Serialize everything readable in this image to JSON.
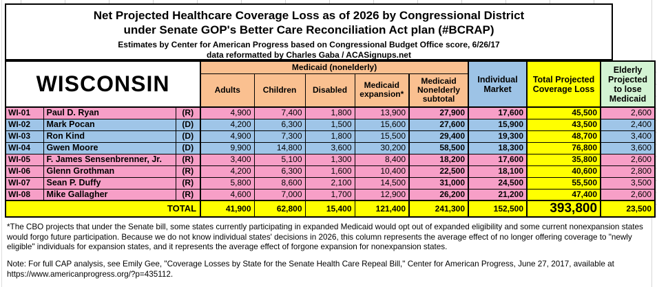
{
  "title": {
    "line1": "Net Projected Healthcare Coverage Loss as of 2026 by Congressional District",
    "line2": "under Senate GOP's Better Care Reconciliation Act plan (#BCRAP)",
    "line3": "Estimates by Center for American Progress based on Congressional Budget Office score, 6/26/17",
    "line4": "data reformatted by Charles Gaba / ACASignups.net"
  },
  "chart_data": {
    "type": "table",
    "state": "WISCONSIN",
    "headers": {
      "medicaid_group": "Medicaid (nonelderly)",
      "adults": "Adults",
      "children": "Children",
      "disabled": "Disabled",
      "expansion": "Medicaid expansion*",
      "subtotal": "Medicaid Nonelderly subtotal",
      "individual_market": "Individual Market",
      "total_loss": "Total Projected Coverage Loss",
      "elderly": "Elderly Projected to lose Medicaid"
    },
    "rows": [
      {
        "district": "WI-01",
        "name": "Paul D. Ryan",
        "party": "(R)",
        "adults": "4,900",
        "children": "7,400",
        "disabled": "1,800",
        "expansion": "13,900",
        "subtotal": "27,900",
        "individual_market": "17,600",
        "total_loss": "45,500",
        "elderly": "2,600"
      },
      {
        "district": "WI-02",
        "name": "Mark Pocan",
        "party": "(D)",
        "adults": "4,200",
        "children": "6,300",
        "disabled": "1,500",
        "expansion": "15,600",
        "subtotal": "27,600",
        "individual_market": "15,900",
        "total_loss": "43,500",
        "elderly": "2,400"
      },
      {
        "district": "WI-03",
        "name": "Ron Kind",
        "party": "(D)",
        "adults": "4,900",
        "children": "7,300",
        "disabled": "1,800",
        "expansion": "15,500",
        "subtotal": "29,400",
        "individual_market": "19,300",
        "total_loss": "48,700",
        "elderly": "3,400"
      },
      {
        "district": "WI-04",
        "name": "Gwen Moore",
        "party": "(D)",
        "adults": "9,900",
        "children": "14,800",
        "disabled": "3,600",
        "expansion": "30,200",
        "subtotal": "58,500",
        "individual_market": "18,300",
        "total_loss": "76,800",
        "elderly": "3,600"
      },
      {
        "district": "WI-05",
        "name": "F. James Sensenbrenner, Jr.",
        "party": "(R)",
        "adults": "3,400",
        "children": "5,100",
        "disabled": "1,300",
        "expansion": "8,400",
        "subtotal": "18,200",
        "individual_market": "17,600",
        "total_loss": "35,800",
        "elderly": "2,600"
      },
      {
        "district": "WI-06",
        "name": "Glenn Grothman",
        "party": "(R)",
        "adults": "4,200",
        "children": "6,300",
        "disabled": "1,600",
        "expansion": "10,400",
        "subtotal": "22,500",
        "individual_market": "18,100",
        "total_loss": "40,600",
        "elderly": "2,800"
      },
      {
        "district": "WI-07",
        "name": "Sean P. Duffy",
        "party": "(R)",
        "adults": "5,800",
        "children": "8,600",
        "disabled": "2,100",
        "expansion": "14,500",
        "subtotal": "31,000",
        "individual_market": "24,500",
        "total_loss": "55,500",
        "elderly": "3,500"
      },
      {
        "district": "WI-08",
        "name": "Mike Gallagher",
        "party": "(R)",
        "adults": "4,600",
        "children": "7,000",
        "disabled": "1,700",
        "expansion": "12,900",
        "subtotal": "26,200",
        "individual_market": "21,200",
        "total_loss": "47,400",
        "elderly": "2,600"
      }
    ],
    "total_row": {
      "label": "TOTAL",
      "adults": "41,900",
      "children": "62,800",
      "disabled": "15,400",
      "expansion": "121,400",
      "subtotal": "241,300",
      "individual_market": "152,500",
      "total_loss": "393,800",
      "elderly": "23,500"
    }
  },
  "footnotes": {
    "expansion_note": "*The CBO projects that under the Senate bill, some states currently participating in expanded Medicaid would opt out of expanded eligibility and some current nonexpansion states would forgo future participation. Because we do not know individual states' decisions in 2026, this column represents the average effect of no longer offering coverage to \"newly eligible\" individuals for expansion states, and it represents the average effect of forgone expansion for nonexpansion states.",
    "source_note": "Note: For full CAP analysis, see Emily Gee, \"Coverage Losses by State for the Senate Health Care Repeal Bill,\" Center for American Progress, June 27, 2017, available at https://www.americanprogress.org/?p=435112."
  },
  "colors": {
    "header_orange": "#FAC090",
    "row_pink": "#F79FC7",
    "row_blue": "#9FC5E8",
    "header_blue": "#9DC3E6",
    "highlight_yellow": "#FFFF00",
    "header_green": "#D3F3D3",
    "border": "#000000"
  }
}
